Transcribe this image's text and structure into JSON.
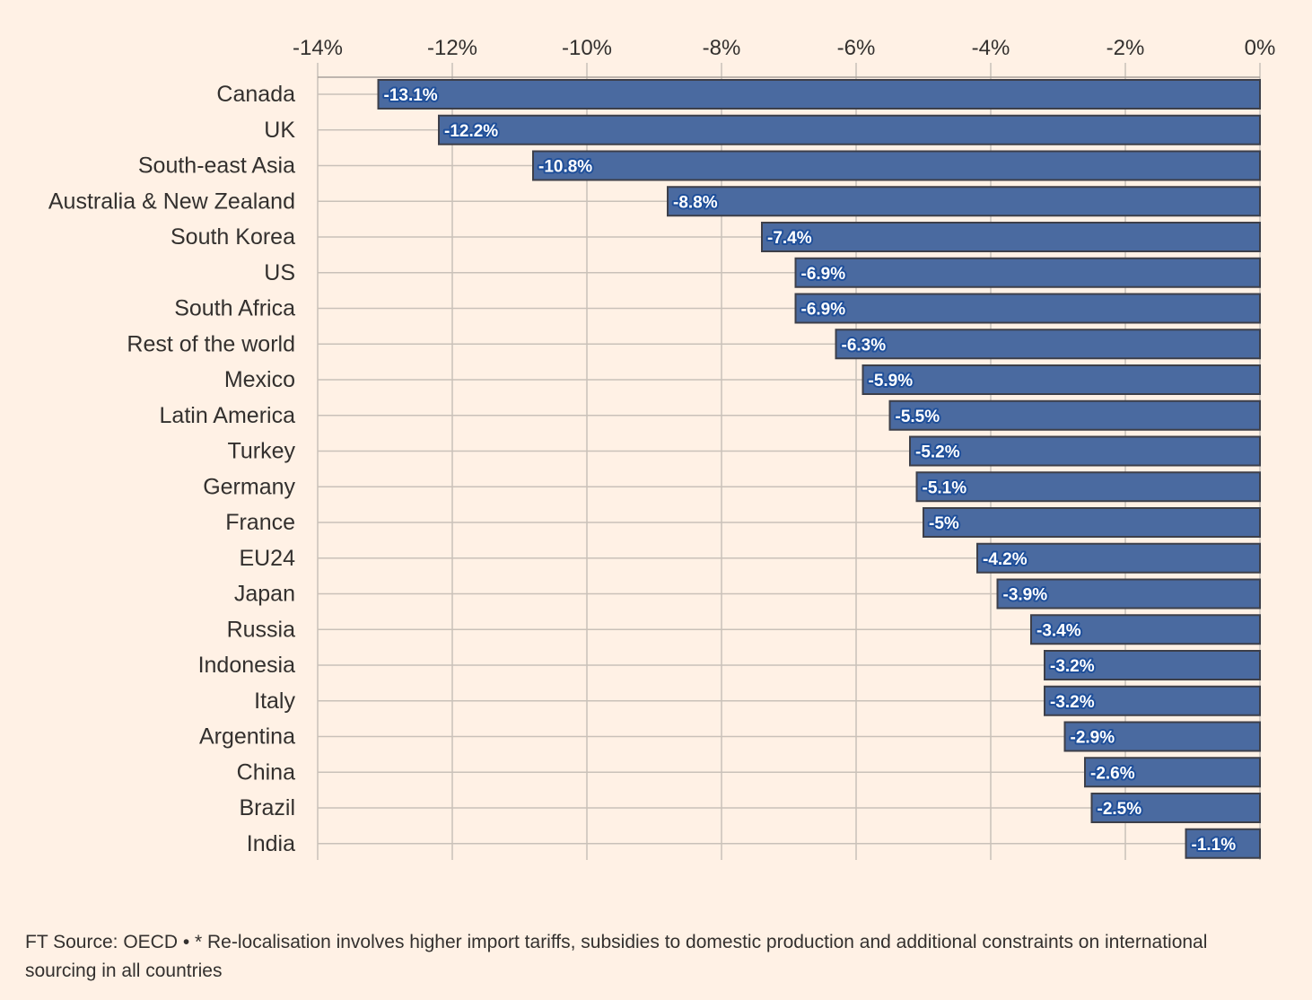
{
  "chart_data": {
    "type": "bar",
    "orientation": "horizontal",
    "categories": [
      "Canada",
      "UK",
      "South-east Asia",
      "Australia & New Zealand",
      "South Korea",
      "US",
      "South Africa",
      "Rest of the world",
      "Mexico",
      "Latin America",
      "Turkey",
      "Germany",
      "France",
      "EU24",
      "Japan",
      "Russia",
      "Indonesia",
      "Italy",
      "Argentina",
      "China",
      "Brazil",
      "India"
    ],
    "values": [
      -13.1,
      -12.2,
      -10.8,
      -8.8,
      -7.4,
      -6.9,
      -6.9,
      -6.3,
      -5.9,
      -5.5,
      -5.2,
      -5.1,
      -5,
      -4.2,
      -3.9,
      -3.4,
      -3.2,
      -3.2,
      -2.9,
      -2.6,
      -2.5,
      -1.1
    ],
    "data_labels": [
      "-13.1%",
      "-12.2%",
      "-10.8%",
      "-8.8%",
      "-7.4%",
      "-6.9%",
      "-6.9%",
      "-6.3%",
      "-5.9%",
      "-5.5%",
      "-5.2%",
      "-5.1%",
      "-5%",
      "-4.2%",
      "-3.9%",
      "-3.4%",
      "-3.2%",
      "-3.2%",
      "-2.9%",
      "-2.6%",
      "-2.5%",
      "-1.1%"
    ],
    "xlim": [
      -14,
      0
    ],
    "x_ticks": [
      -14,
      -12,
      -10,
      -8,
      -6,
      -4,
      -2,
      0
    ],
    "x_tick_labels": [
      "-14%",
      "-12%",
      "-10%",
      "-8%",
      "-6%",
      "-4%",
      "-2%",
      "0%"
    ],
    "x_axis_position": "top",
    "grid": true,
    "title": "",
    "xlabel": "",
    "ylabel": "",
    "colors": {
      "bar": "#4a6aa0",
      "bar_border": "#3d3f49",
      "background": "#fff1e5",
      "grid": "#c9c1b9",
      "text": "#33302e",
      "label_halo": "#1f4f9a"
    }
  },
  "footer": {
    "source": "FT Source: OECD • * Re-localisation involves higher import tariffs, subsidies to domestic production and additional constraints on international sourcing in all countries"
  }
}
